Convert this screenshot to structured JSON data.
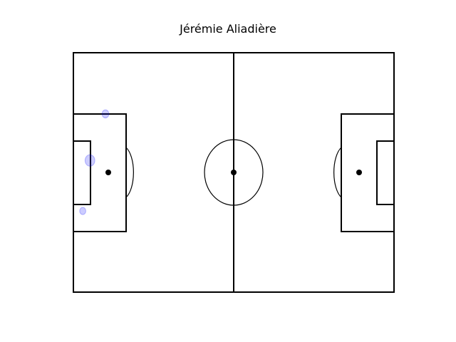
{
  "title": "Jérémie Aliadière",
  "colors": {
    "lines": "#000000",
    "shots": "#0000ff",
    "background": "#ffffff"
  },
  "chart_data": {
    "type": "scatter",
    "title": "Jérémie Aliadière",
    "xlim": [
      0,
      120
    ],
    "ylim": [
      0,
      90
    ],
    "grid": false,
    "points": [
      {
        "x": 12.0,
        "y": 67.0,
        "size": 1.0
      },
      {
        "x": 6.2,
        "y": 49.5,
        "size": 2.0
      },
      {
        "x": 3.5,
        "y": 30.5,
        "size": 0.8
      }
    ]
  }
}
